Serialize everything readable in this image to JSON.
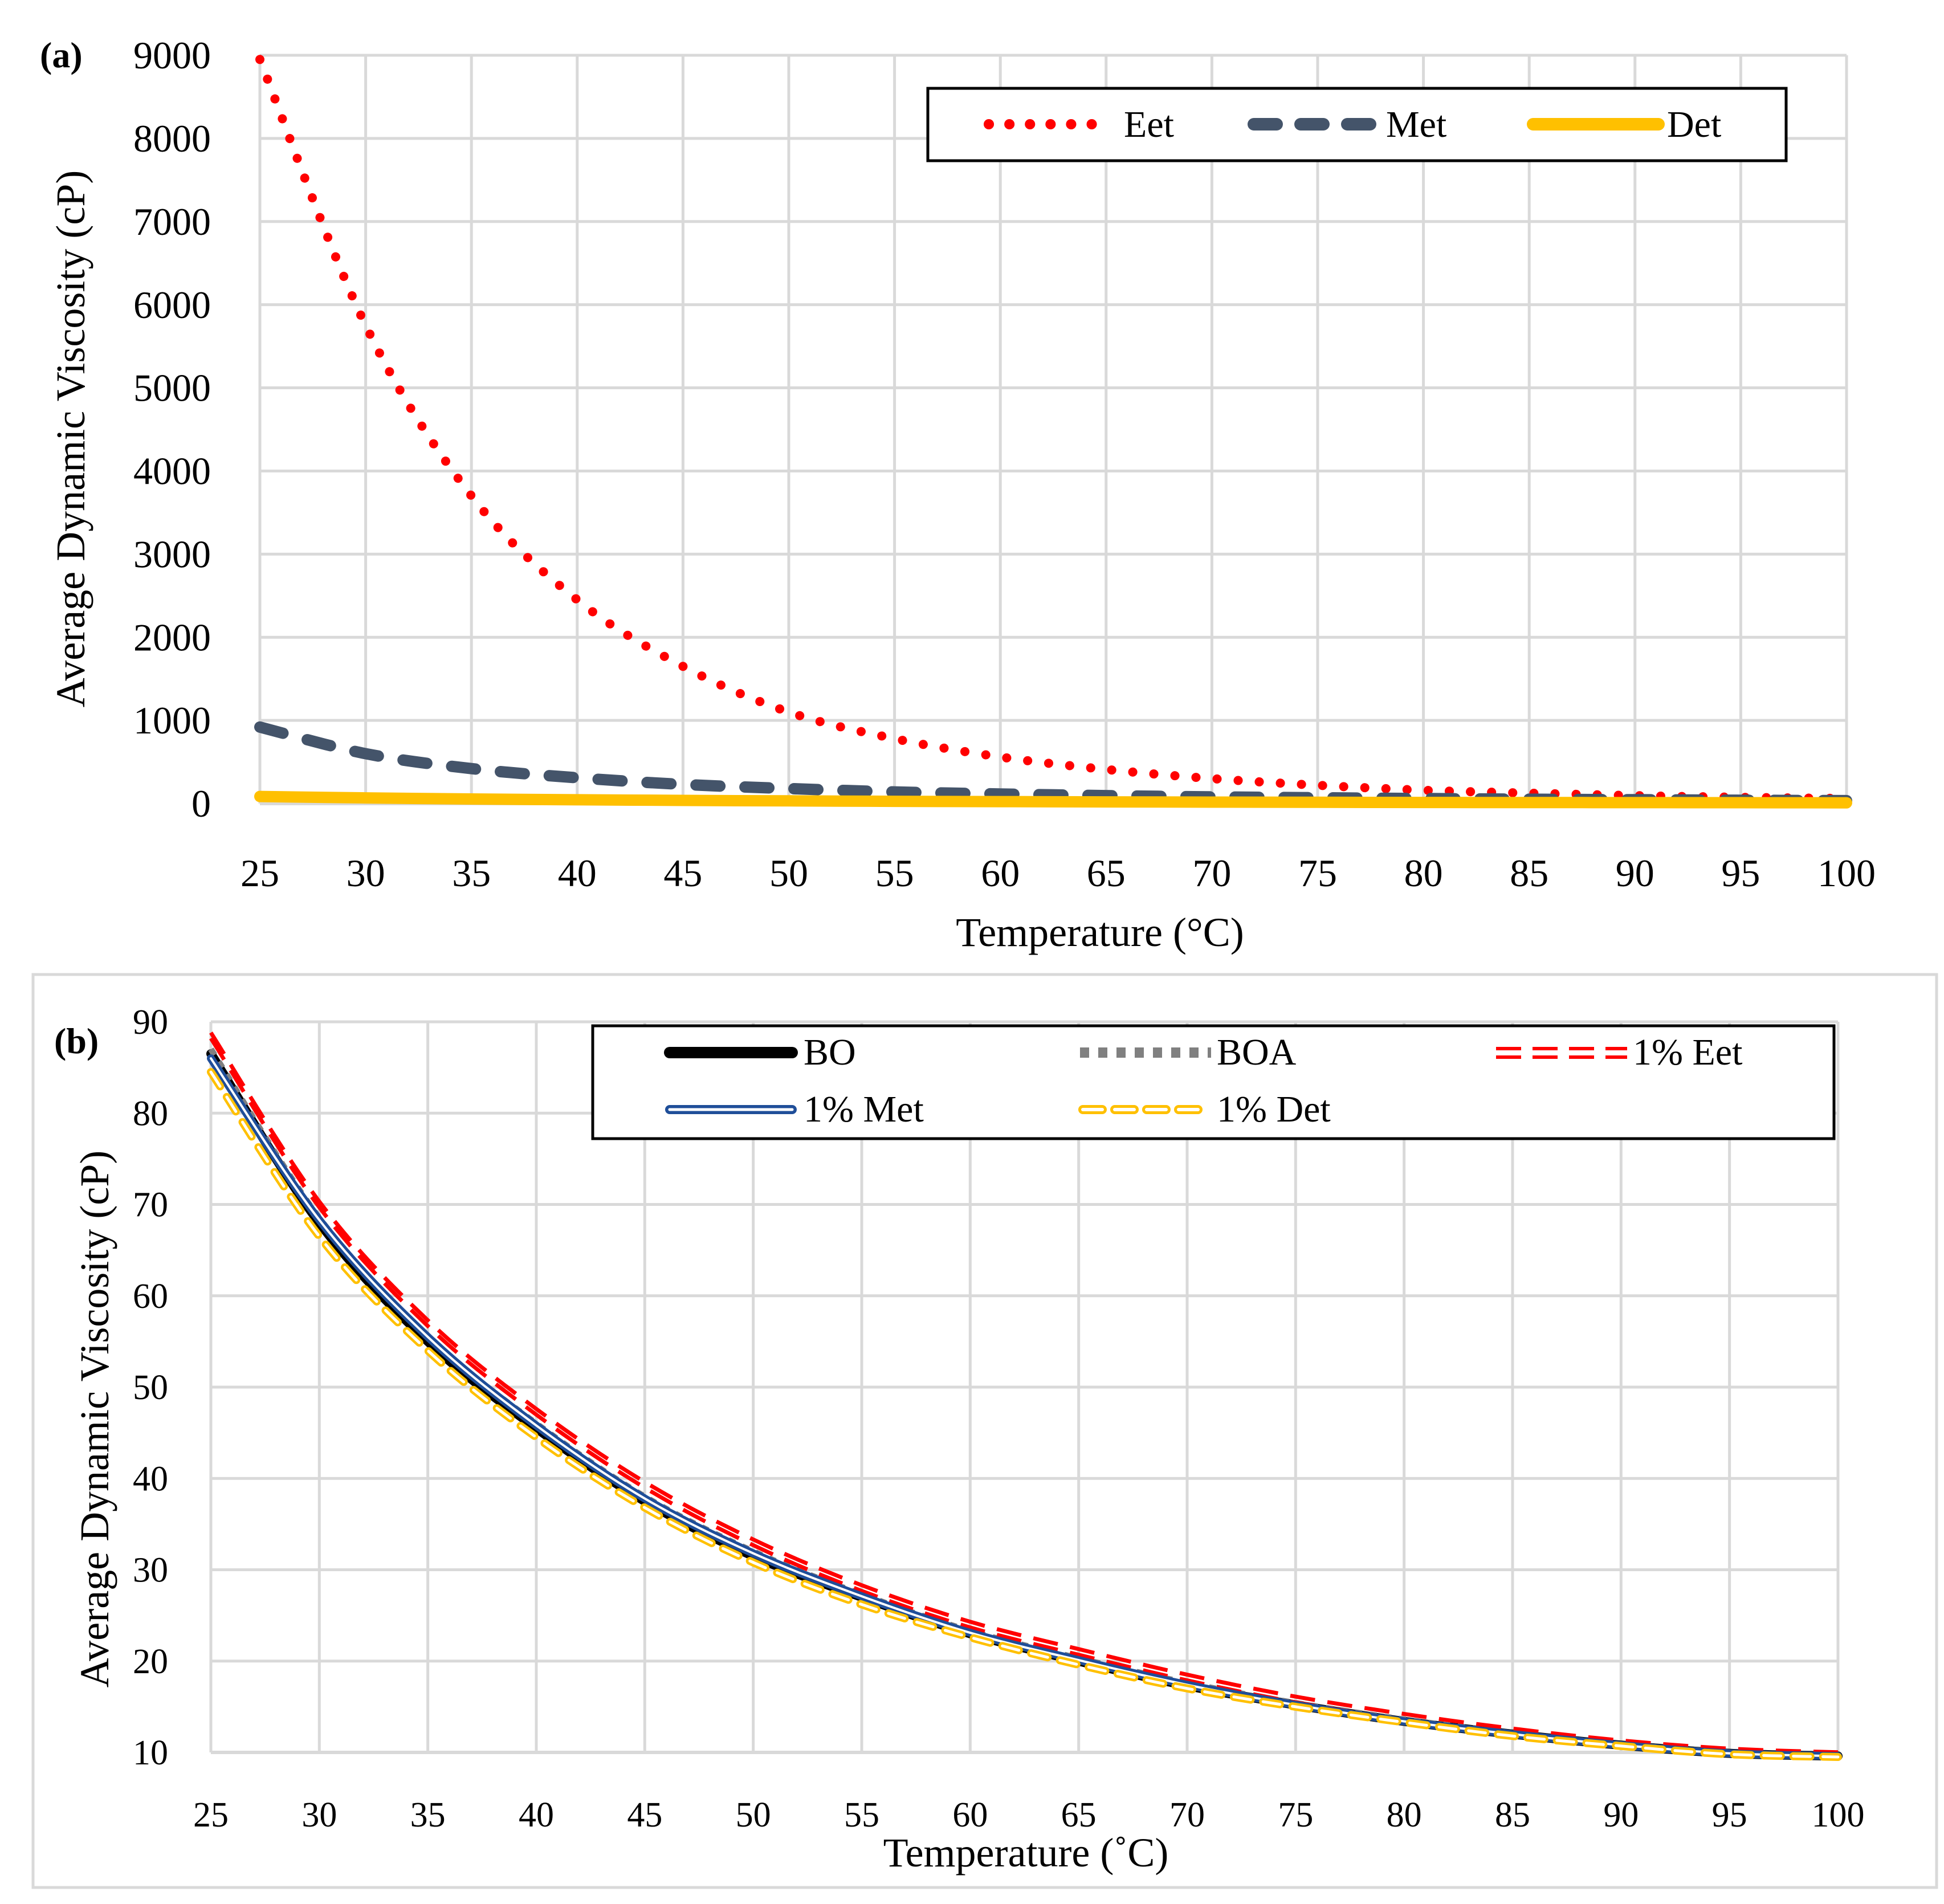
{
  "chart_data": [
    {
      "panel_label": "(a)",
      "type": "line",
      "title": "",
      "xlabel": "Temperature (°C)",
      "ylabel": "Average Dynamic Viscosity (cP)",
      "xlim": [
        25,
        100
      ],
      "ylim": [
        0,
        9000
      ],
      "x_ticks": [
        25,
        30,
        35,
        40,
        45,
        50,
        55,
        60,
        65,
        70,
        75,
        80,
        85,
        90,
        95,
        100
      ],
      "y_ticks": [
        0,
        1000,
        2000,
        3000,
        4000,
        5000,
        6000,
        7000,
        8000,
        9000
      ],
      "grid": true,
      "legend_position": "top-right",
      "x": [
        25,
        30,
        35,
        40,
        45,
        50,
        55,
        60,
        65,
        70,
        75,
        80,
        85,
        90,
        95,
        100
      ],
      "series": [
        {
          "name": "Eet",
          "style": "dotted",
          "color": "#ff0000",
          "values": [
            8950,
            5750,
            3700,
            2450,
            1650,
            1100,
            780,
            560,
            410,
            300,
            220,
            160,
            125,
            95,
            75,
            60
          ]
        },
        {
          "name": "Met",
          "style": "dashed",
          "color": "#44546a",
          "values": [
            920,
            600,
            420,
            310,
            230,
            180,
            140,
            115,
            95,
            80,
            70,
            60,
            52,
            46,
            40,
            35
          ]
        },
        {
          "name": "Det",
          "style": "solid",
          "color": "#ffc000",
          "values": [
            85,
            68,
            55,
            45,
            38,
            32,
            27,
            23,
            20,
            17,
            15,
            13,
            12,
            11,
            10,
            9
          ]
        }
      ]
    },
    {
      "panel_label": "(b)",
      "type": "line",
      "title": "",
      "xlabel": "Temperature (˚C)",
      "ylabel": "Average Dynamic Viscosity (cP)",
      "xlim": [
        25,
        100
      ],
      "ylim": [
        10,
        90
      ],
      "x_ticks": [
        25,
        30,
        35,
        40,
        45,
        50,
        55,
        60,
        65,
        70,
        75,
        80,
        85,
        90,
        95,
        100
      ],
      "y_ticks": [
        10,
        20,
        30,
        40,
        50,
        60,
        70,
        80,
        90
      ],
      "grid": true,
      "legend_position": "top-right",
      "x": [
        25,
        30,
        35,
        40,
        45,
        50,
        55,
        60,
        65,
        70,
        75,
        80,
        85,
        90,
        95,
        100
      ],
      "series": [
        {
          "name": "BO",
          "style": "solid-thick",
          "color": "#000000",
          "values": [
            86.5,
            68.0,
            55.0,
            45.5,
            37.5,
            31.5,
            27.0,
            23.0,
            20.0,
            17.3,
            15.2,
            13.4,
            12.0,
            10.8,
            9.9,
            9.6
          ]
        },
        {
          "name": "BOA",
          "style": "dotted-square",
          "color": "#808080",
          "values": [
            87.0,
            68.5,
            55.5,
            46.0,
            38.0,
            32.0,
            27.3,
            23.3,
            20.3,
            17.6,
            15.4,
            13.6,
            12.1,
            10.9,
            10.0,
            9.6
          ]
        },
        {
          "name": "1% Eet",
          "style": "dashed-double",
          "color": "#ff0000",
          "values": [
            88.5,
            70.0,
            57.0,
            47.3,
            39.3,
            33.0,
            28.0,
            24.0,
            21.0,
            18.2,
            15.8,
            13.9,
            12.3,
            11.0,
            10.1,
            9.7
          ]
        },
        {
          "name": "1% Met",
          "style": "double",
          "color": "#1f4e99",
          "values": [
            86.0,
            68.3,
            55.5,
            45.8,
            37.8,
            31.8,
            27.1,
            23.1,
            20.1,
            17.4,
            15.2,
            13.4,
            12.0,
            10.8,
            9.9,
            9.6
          ]
        },
        {
          "name": "1% Det",
          "style": "dashed-hollow",
          "color": "#ffc000",
          "values": [
            84.5,
            66.5,
            54.0,
            44.5,
            36.8,
            30.8,
            26.2,
            22.6,
            19.6,
            17.0,
            15.0,
            13.3,
            11.8,
            10.7,
            9.8,
            9.5
          ]
        }
      ]
    }
  ]
}
